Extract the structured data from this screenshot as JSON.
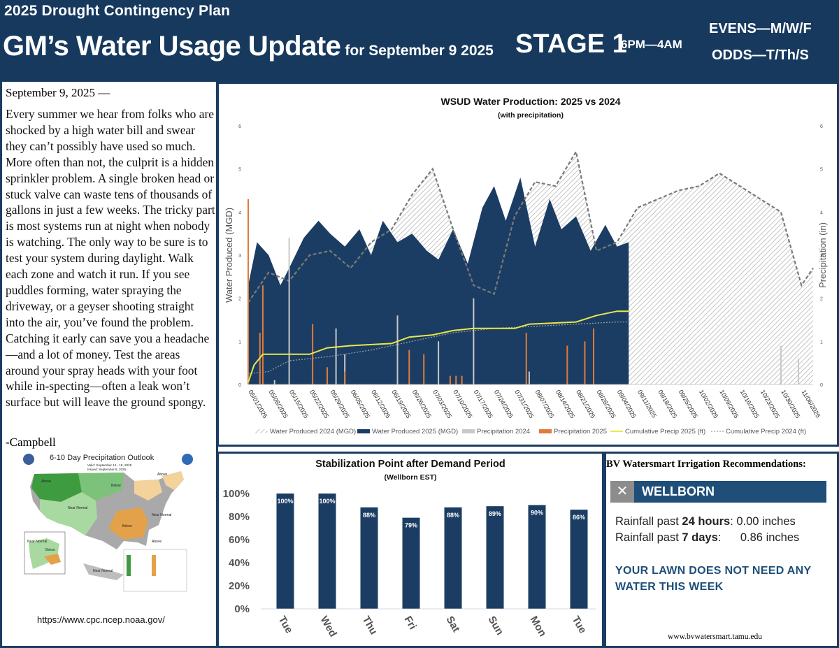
{
  "banner": {
    "plan": "2025 Drought Contingency Plan",
    "title": "GM’s Water Usage Update",
    "title_suffix": "for September 9 2025",
    "stage": "STAGE 1",
    "hours": "6PM—4AM",
    "evens": "EVENS—M/W/F",
    "odds": "ODDS—T/Th/S"
  },
  "story": {
    "date": "September 9, 2025 —",
    "body": "Every summer we hear from folks who are shocked by a high water bill and swear they can’t possibly have used so much. More often than not, the culprit is a hidden sprinkler problem. A single broken head or stuck valve can waste tens of thousands of gallons in just a few weeks. The tricky part is most systems run at night when nobody is watching. The only way to be sure is to test your system during daylight. Walk each zone and watch it run. If you see puddles forming, water spraying the driveway, or a geyser shooting straight into the air, you’ve found the problem. Catching it early can save you a headache—and a lot of money. Test the areas around your spray heads with your foot while in-specting—often a leak won’t surface but will leave the ground spongy.",
    "signature": "-Campbell"
  },
  "outlook": {
    "title": "6-10 Day Precipitation Outlook",
    "valid": "Valid: September 14 - 18, 2025",
    "issued": "Issued: September 8, 2025",
    "labels": [
      "Above",
      "Below",
      "Near Normal",
      "Above",
      "Below",
      "Near Normal",
      "Near Normal",
      "Below",
      "Near Normal",
      "Above"
    ],
    "url": "https://www.cpc.ncep.noaa.gov/",
    "colors": {
      "wet": "#3f9b3f",
      "wet_light": "#a8d9a0",
      "dry": "#e3a24a",
      "dry_light": "#f3d29b",
      "normal": "#a9a9a9"
    }
  },
  "bv": {
    "heading": "BV Watersmart Irrigation Recommendations:",
    "x": "✕",
    "place": "WELLBORN",
    "r24_label": "Rainfall past",
    "r24_bold": "24 hours",
    "r24_value": ": 0.00 inches",
    "r7_label": "Rainfall past",
    "r7_bold": "7 days",
    "r7_value": ":      0.86 inches",
    "message": "YOUR LAWN DOES NOT NEED ANY WATER THIS WEEK",
    "site": "www.bvwatersmart.tamu.edu"
  },
  "chart_data": [
    {
      "type": "area",
      "title": "WSUD Water Production: 2025 vs 2024",
      "subtitle": "(with precipitation)",
      "ylabel": "Water Produced (MGD)",
      "y2label": "Precipitation (in)",
      "ylim": [
        0,
        6
      ],
      "y2lim": [
        0,
        6
      ],
      "yticks": [
        0,
        1,
        2,
        3,
        4,
        5,
        6
      ],
      "x_start": "2025-05-01",
      "x_end": "2025-11-10",
      "x_ticks": [
        "05/01/2025",
        "05/08/2025",
        "05/15/2025",
        "05/22/2025",
        "05/29/2025",
        "06/05/2025",
        "06/12/2025",
        "06/19/2025",
        "06/26/2025",
        "07/03/2025",
        "07/10/2025",
        "07/17/2025",
        "07/24/2025",
        "07/31/2025",
        "08/07/2025",
        "08/14/2025",
        "08/21/2025",
        "08/28/2025",
        "09/04/2025",
        "09/11/2025",
        "09/18/2025",
        "09/25/2025",
        "10/02/2025",
        "10/09/2025",
        "10/16/2025",
        "10/23/2025",
        "10/30/2025",
        "11/06/2025"
      ],
      "legend_position": "bottom",
      "grid": false,
      "colors": {
        "p2024": "#bdbdbd",
        "p2025": "#1b3d63",
        "precip2024": "#c8c8c8",
        "precip2025": "#e07b39",
        "cum2025": "#e8e84a",
        "cum2024": "#9a9a9a"
      },
      "series": [
        {
          "name": "Water Produced 2024 (MGD)",
          "x": [
            "2025-05-01",
            "2025-05-08",
            "2025-05-15",
            "2025-05-22",
            "2025-05-29",
            "2025-06-05",
            "2025-06-12",
            "2025-06-19",
            "2025-06-26",
            "2025-07-03",
            "2025-07-10",
            "2025-07-17",
            "2025-07-24",
            "2025-07-31",
            "2025-08-07",
            "2025-08-14",
            "2025-08-21",
            "2025-08-28",
            "2025-09-04",
            "2025-09-11",
            "2025-09-18",
            "2025-09-25",
            "2025-10-02",
            "2025-10-09",
            "2025-10-16",
            "2025-10-23",
            "2025-10-30",
            "2025-11-06",
            "2025-11-10"
          ],
          "values": [
            1.9,
            2.6,
            2.4,
            3.0,
            3.1,
            2.7,
            3.3,
            3.6,
            4.4,
            5.0,
            3.6,
            2.3,
            2.1,
            3.9,
            4.7,
            4.6,
            5.4,
            3.1,
            3.3,
            4.1,
            4.3,
            4.5,
            4.6,
            4.9,
            4.6,
            4.3,
            4.0,
            2.3,
            2.7
          ]
        },
        {
          "name": "Water Produced 2025 (MGD)",
          "x": [
            "2025-05-01",
            "2025-05-04",
            "2025-05-08",
            "2025-05-12",
            "2025-05-15",
            "2025-05-20",
            "2025-05-25",
            "2025-05-29",
            "2025-06-03",
            "2025-06-08",
            "2025-06-12",
            "2025-06-16",
            "2025-06-21",
            "2025-06-26",
            "2025-07-01",
            "2025-07-05",
            "2025-07-10",
            "2025-07-15",
            "2025-07-20",
            "2025-07-24",
            "2025-07-28",
            "2025-08-02",
            "2025-08-07",
            "2025-08-12",
            "2025-08-16",
            "2025-08-21",
            "2025-08-26",
            "2025-08-31",
            "2025-09-04",
            "2025-09-08"
          ],
          "values": [
            2.3,
            3.3,
            3.0,
            2.3,
            2.7,
            3.4,
            3.8,
            3.5,
            3.2,
            3.6,
            3.0,
            3.8,
            3.3,
            3.5,
            3.1,
            2.9,
            3.6,
            2.8,
            4.1,
            4.6,
            3.8,
            4.8,
            3.2,
            4.3,
            3.6,
            3.9,
            3.1,
            3.7,
            3.2,
            3.3
          ]
        },
        {
          "name": "Precipitation 2024",
          "x": [
            "2025-05-10",
            "2025-05-15",
            "2025-05-31",
            "2025-06-03",
            "2025-06-21",
            "2025-07-05",
            "2025-07-17",
            "2025-08-05",
            "2025-10-30",
            "2025-11-05"
          ],
          "values": [
            0.1,
            3.4,
            1.3,
            0.7,
            1.6,
            1.0,
            2.0,
            0.3,
            0.9,
            0.6
          ]
        },
        {
          "name": "Precipitation 2025",
          "x": [
            "2025-05-01",
            "2025-05-05",
            "2025-05-06",
            "2025-05-23",
            "2025-05-28",
            "2025-06-03",
            "2025-06-25",
            "2025-06-30",
            "2025-07-09",
            "2025-07-11",
            "2025-07-13",
            "2025-08-04",
            "2025-08-18",
            "2025-08-24",
            "2025-08-27"
          ],
          "values": [
            4.3,
            1.2,
            2.3,
            1.4,
            0.4,
            0.3,
            0.8,
            0.7,
            0.2,
            0.2,
            0.2,
            1.2,
            0.9,
            1.0,
            1.3
          ]
        },
        {
          "name": "Cumulative Precip 2025 (ft)",
          "x": [
            "2025-05-01",
            "2025-05-03",
            "2025-05-06",
            "2025-05-15",
            "2025-05-22",
            "2025-05-28",
            "2025-06-05",
            "2025-06-19",
            "2025-06-25",
            "2025-07-03",
            "2025-07-10",
            "2025-07-17",
            "2025-07-31",
            "2025-08-05",
            "2025-08-21",
            "2025-08-28",
            "2025-09-04",
            "2025-09-08"
          ],
          "values": [
            0.05,
            0.45,
            0.7,
            0.7,
            0.7,
            0.85,
            0.9,
            0.95,
            1.1,
            1.15,
            1.25,
            1.3,
            1.3,
            1.4,
            1.45,
            1.6,
            1.7,
            1.7
          ]
        },
        {
          "name": "Cumulative Precip 2024 (ft)",
          "x": [
            "2025-05-01",
            "2025-05-08",
            "2025-05-15",
            "2025-05-29",
            "2025-06-12",
            "2025-06-26",
            "2025-07-10",
            "2025-07-24",
            "2025-08-07",
            "2025-08-21",
            "2025-09-04",
            "2025-09-08"
          ],
          "values": [
            0.25,
            0.3,
            0.55,
            0.65,
            0.8,
            1.0,
            1.2,
            1.3,
            1.35,
            1.4,
            1.45,
            1.45
          ]
        }
      ]
    },
    {
      "type": "bar",
      "title": "Stabilization Point after Demand Period",
      "subtitle": "(Wellborn EST)",
      "categories": [
        "Tue",
        "Wed",
        "Thu",
        "Fri",
        "Sat",
        "Sun",
        "Mon",
        "Tue"
      ],
      "values": [
        100,
        100,
        88,
        79,
        88,
        89,
        90,
        86
      ],
      "data_labels": [
        "100%",
        "100%",
        "88%",
        "79%",
        "88%",
        "89%",
        "90%",
        "86%"
      ],
      "ylim": [
        0,
        100
      ],
      "yticks": [
        "0%",
        "20%",
        "40%",
        "60%",
        "80%",
        "100%"
      ],
      "color": "#1b3d63",
      "grid": false
    }
  ]
}
